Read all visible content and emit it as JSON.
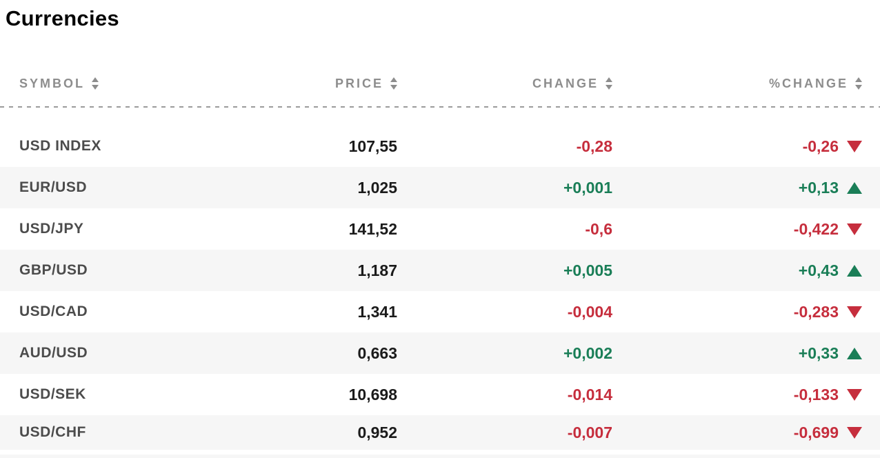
{
  "page": {
    "title": "Currencies"
  },
  "table": {
    "columns": [
      {
        "key": "symbol",
        "label": "SYMBOL",
        "sortable": true
      },
      {
        "key": "price",
        "label": "PRICE",
        "sortable": true
      },
      {
        "key": "change",
        "label": "CHANGE",
        "sortable": true
      },
      {
        "key": "pct_change",
        "label": "%CHANGE",
        "sortable": true
      }
    ],
    "rows": [
      {
        "symbol": "USD INDEX",
        "price": "107,55",
        "change": "-0,28",
        "pct_change": "-0,26",
        "direction": "down"
      },
      {
        "symbol": "EUR/USD",
        "price": "1,025",
        "change": "+0,001",
        "pct_change": "+0,13",
        "direction": "up"
      },
      {
        "symbol": "USD/JPY",
        "price": "141,52",
        "change": "-0,6",
        "pct_change": "-0,422",
        "direction": "down"
      },
      {
        "symbol": "GBP/USD",
        "price": "1,187",
        "change": "+0,005",
        "pct_change": "+0,43",
        "direction": "up"
      },
      {
        "symbol": "USD/CAD",
        "price": "1,341",
        "change": "-0,004",
        "pct_change": "-0,283",
        "direction": "down"
      },
      {
        "symbol": "AUD/USD",
        "price": "0,663",
        "change": "+0,002",
        "pct_change": "+0,33",
        "direction": "up"
      },
      {
        "symbol": "USD/SEK",
        "price": "10,698",
        "change": "-0,014",
        "pct_change": "-0,133",
        "direction": "down"
      },
      {
        "symbol": "USD/CHF",
        "price": "0,952",
        "change": "-0,007",
        "pct_change": "-0,699",
        "direction": "down"
      }
    ]
  },
  "icons": {
    "sort": "sort-up-down-arrows",
    "up": "up-triangle",
    "down": "down-triangle"
  },
  "colors": {
    "positive": "#1a7e57",
    "negative": "#c62e3d",
    "row_alt_bg": "#f6f6f6",
    "header_text": "#8d8d8d",
    "symbol_text": "#4c4c4c",
    "price_text": "#1b1b1b",
    "separator": "#9b9b9b"
  }
}
